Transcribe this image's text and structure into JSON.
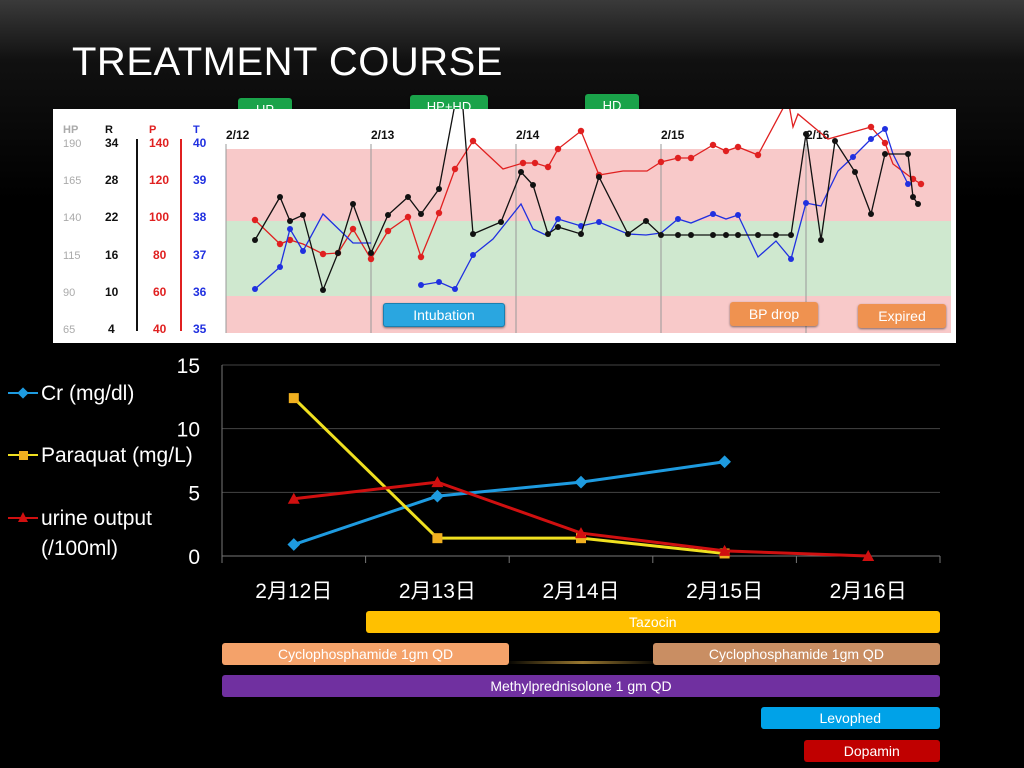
{
  "title": "TREATMENT COURSE",
  "top_tags": [
    {
      "label": "HP",
      "color": "#1aa34a"
    },
    {
      "label": "HP+HD",
      "color": "#1aa34a"
    },
    {
      "label": "HD",
      "color": "#1aa34a"
    }
  ],
  "vitals_chart": {
    "column_headers": [
      "HP",
      "R",
      "P",
      "T"
    ],
    "scales": {
      "HP": [
        "190",
        "165",
        "140",
        "115",
        "90",
        "65"
      ],
      "R": [
        "34",
        "28",
        "22",
        "16",
        "10",
        "4"
      ],
      "P": [
        "140",
        "120",
        "100",
        "80",
        "60",
        "40"
      ],
      "T": [
        "40",
        "39",
        "38",
        "37",
        "36",
        "35"
      ]
    },
    "day_labels": [
      "2/12",
      "2/13",
      "2/14",
      "2/15",
      "2/16"
    ],
    "events": {
      "intubation": "Intubation",
      "bp_drop": "BP drop",
      "expired": "Expired"
    },
    "colors": {
      "pulse": "#e02020",
      "resp": "#111111",
      "temp": "#2030e0",
      "red_zone": "#f8c9c9",
      "green_zone": "#cfe8cf"
    }
  },
  "legend": [
    {
      "label": "Cr (mg/dl)",
      "color": "#1e9be0"
    },
    {
      "label": "Paraquat (mg/L)",
      "color": "#f0e020"
    },
    {
      "label": "urine output",
      "label2": "(/100ml)",
      "color": "#d01010"
    }
  ],
  "chart_data": {
    "type": "line",
    "categories": [
      "2月12日",
      "2月13日",
      "2月14日",
      "2月15日",
      "2月16日"
    ],
    "ylim": [
      0,
      15
    ],
    "yticks": [
      "0",
      "5",
      "10",
      "15"
    ],
    "series": [
      {
        "name": "Cr (mg/dl)",
        "color": "#1e9be0",
        "marker": "diamond",
        "values": [
          0.9,
          4.7,
          5.8,
          7.4,
          null
        ]
      },
      {
        "name": "Paraquat (mg/L)",
        "color": "#f0e020",
        "marker": "square",
        "values": [
          12.4,
          1.4,
          1.4,
          0.2,
          null
        ]
      },
      {
        "name": "urine output (/100ml)",
        "color": "#d01010",
        "marker": "triangle",
        "values": [
          4.5,
          5.8,
          1.8,
          0.4,
          0.0
        ]
      }
    ],
    "grid": true,
    "legend_position": "left"
  },
  "medications": [
    {
      "label": "Tazocin",
      "start_day": 1.0,
      "end_day": 5.0
    },
    {
      "label": "Cyclophosphamide 1gm QD",
      "start_day": 0.0,
      "end_day": 2.0
    },
    {
      "label": "Cyclophosphamide 1gm QD",
      "start_day": 3.0,
      "end_day": 5.0
    },
    {
      "label": "Methylprednisolone 1 gm QD",
      "start_day": 0.0,
      "end_day": 5.0
    },
    {
      "label": "Levophed",
      "start_day": 3.75,
      "end_day": 5.0
    },
    {
      "label": "Dopamin",
      "start_day": 4.05,
      "end_day": 5.0
    }
  ]
}
